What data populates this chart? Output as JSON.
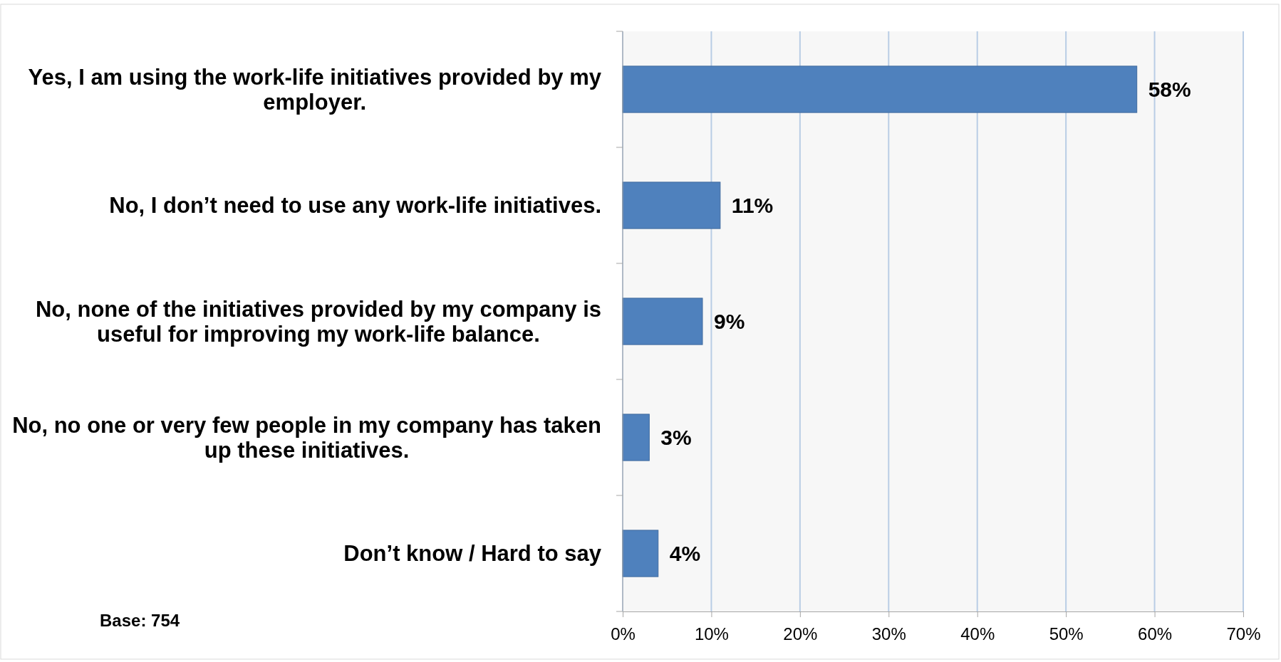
{
  "chart_data": {
    "type": "bar",
    "orientation": "horizontal",
    "categories": [
      "Yes, I am using the work-life initiatives provided by my employer.",
      "No, I don’t need to use any work-life initiatives.",
      "No, none of the initiatives provided by my company is useful for improving my work-life balance.",
      "No, no one or very few people in my company has taken up these initiatives.",
      "Don’t know / Hard to say"
    ],
    "values": [
      58,
      11,
      9,
      3,
      4
    ],
    "value_labels": [
      "58%",
      "11%",
      "9%",
      "3%",
      "4%"
    ],
    "color": "#4f81bd",
    "xlim": [
      0,
      70
    ],
    "xticks": [
      {
        "value": 0,
        "label": "0%"
      },
      {
        "value": 10,
        "label": "10%"
      },
      {
        "value": 20,
        "label": "20%"
      },
      {
        "value": 30,
        "label": "30%"
      },
      {
        "value": 40,
        "label": "40%"
      },
      {
        "value": 50,
        "label": "50%"
      },
      {
        "value": 60,
        "label": "60%"
      },
      {
        "value": 70,
        "label": "70%"
      }
    ],
    "grid": "x",
    "annotations": [
      "Base: 754"
    ]
  }
}
